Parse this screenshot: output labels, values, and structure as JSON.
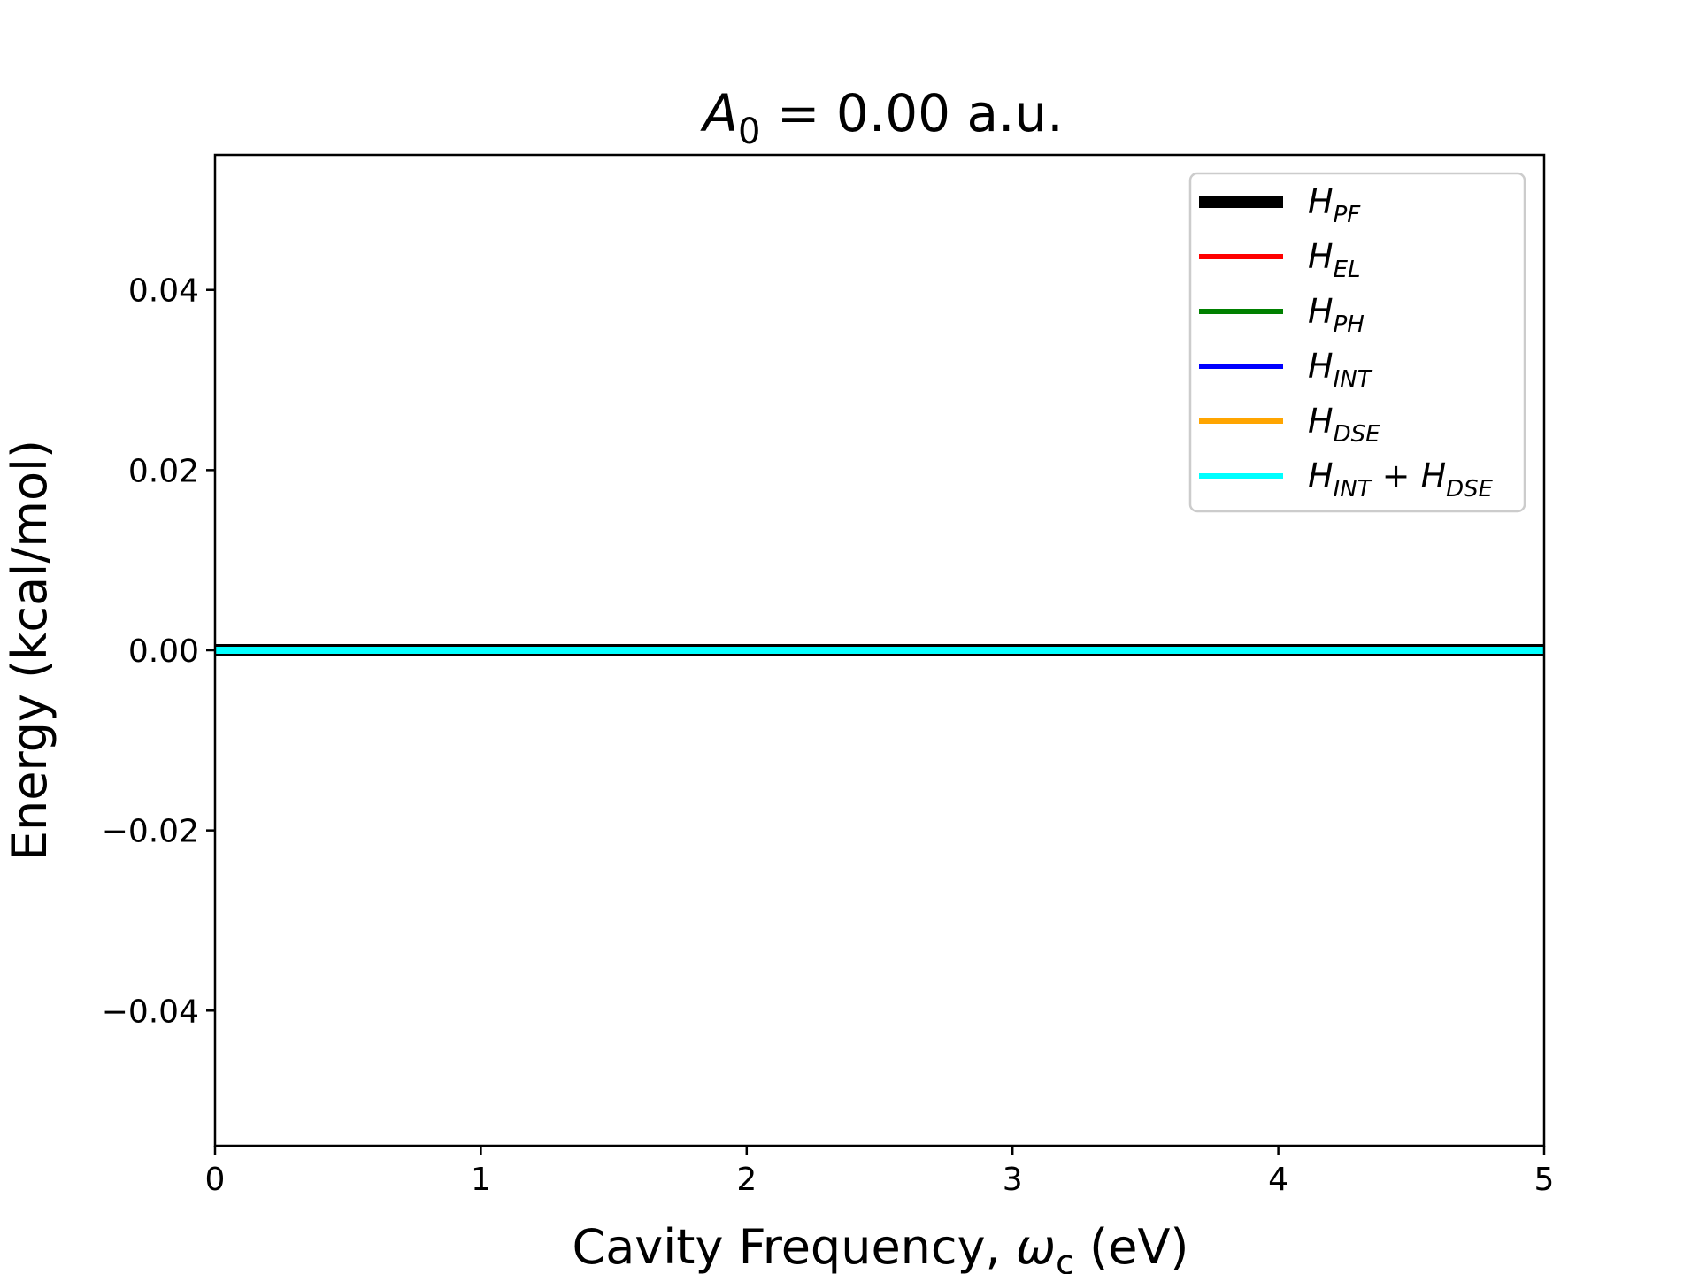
{
  "chart_data": {
    "type": "line",
    "title_parts": {
      "var": "A",
      "sub": "0",
      "rest": " = 0.00 a.u."
    },
    "xlabel_parts": {
      "pre": "Cavity Frequency, ",
      "var": "ω",
      "sub": "c",
      "post": " (eV)"
    },
    "ylabel": "Energy (kcal/mol)",
    "xlim": [
      0,
      5
    ],
    "ylim": [
      -0.055,
      0.055
    ],
    "xticks": [
      0,
      1,
      2,
      3,
      4,
      5
    ],
    "xtick_labels": [
      "0",
      "1",
      "2",
      "3",
      "4",
      "5"
    ],
    "yticks": [
      -0.04,
      -0.02,
      0.0,
      0.02,
      0.04
    ],
    "ytick_labels": [
      "−0.04",
      "−0.02",
      "0.00",
      "0.02",
      "0.04"
    ],
    "grid": false,
    "legend_position": "top-right",
    "x": [
      0,
      5
    ],
    "series": [
      {
        "name": "H_PF",
        "label_var": "H",
        "label_sub": "PF",
        "color": "#000000",
        "values": [
          0.0,
          0.0
        ],
        "width": "thick"
      },
      {
        "name": "H_EL",
        "label_var": "H",
        "label_sub": "EL",
        "color": "#ff0000",
        "values": [
          0.0,
          0.0
        ]
      },
      {
        "name": "H_PH",
        "label_var": "H",
        "label_sub": "PH",
        "color": "#008000",
        "values": [
          0.0,
          0.0
        ]
      },
      {
        "name": "H_INT",
        "label_var": "H",
        "label_sub": "INT",
        "color": "#0000ff",
        "values": [
          0.0,
          0.0
        ]
      },
      {
        "name": "H_DSE",
        "label_var": "H",
        "label_sub": "DSE",
        "color": "#ffa500",
        "values": [
          0.0,
          0.0
        ]
      },
      {
        "name": "H_INT + H_DSE",
        "label_var": "H",
        "label_sub": "INT",
        "label_var2": "H",
        "label_sub2": "DSE",
        "color": "#00ffff",
        "values": [
          0.0,
          0.0
        ]
      }
    ]
  }
}
